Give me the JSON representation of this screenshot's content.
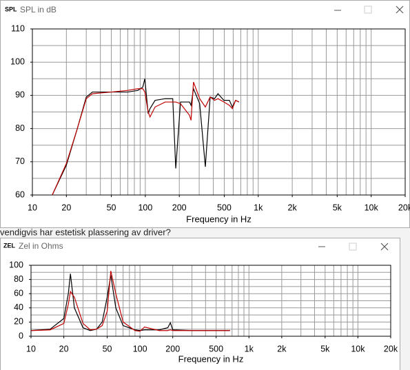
{
  "background_text": "vendigvis har estetisk plassering av driver?",
  "windows": [
    {
      "icon": "SPL",
      "title": "SPL in dB"
    },
    {
      "icon": "ZEL",
      "title": "Zel in Ohms"
    }
  ],
  "chart_data": [
    {
      "type": "line",
      "x_label": "Frequency in Hz",
      "xscale": "log",
      "x": [
        15,
        20,
        25,
        30,
        34,
        50,
        70,
        86,
        95,
        99,
        106,
        110,
        122,
        150,
        175,
        186,
        205,
        246,
        254,
        267,
        303,
        340,
        375,
        410,
        440,
        496,
        555,
        590,
        630,
        675
      ],
      "series": [
        {
          "color": "#000000",
          "values": [
            60,
            69,
            80,
            89.5,
            91,
            91,
            91,
            91.5,
            92.5,
            95,
            84.5,
            86,
            88.5,
            89,
            89,
            68,
            88,
            88,
            87,
            92,
            87.5,
            68.5,
            89.5,
            89,
            90.5,
            88.5,
            88.5,
            86.5,
            88.5,
            88
          ]
        },
        {
          "color": "#c00000",
          "values": [
            60,
            69.5,
            80,
            89,
            90.5,
            91,
            91.5,
            92,
            92,
            91,
            85,
            83.5,
            86.5,
            88,
            88,
            88,
            87.5,
            84,
            82.5,
            94,
            89,
            86.5,
            89.5,
            88.5,
            89,
            88,
            87,
            86,
            88.5,
            88
          ]
        }
      ],
      "xlim": [
        10,
        20000
      ],
      "ylim": [
        60,
        110
      ],
      "xticks": [
        10,
        20,
        50,
        100,
        200,
        500,
        {
          "value": 1000,
          "label": "1k"
        },
        {
          "value": 2000,
          "label": "2k"
        },
        {
          "value": 5000,
          "label": "5k"
        },
        {
          "value": 10000,
          "label": "10k"
        },
        {
          "value": 20000,
          "label": "20k"
        }
      ],
      "yticks": [
        60,
        70,
        80,
        90,
        100,
        110
      ],
      "xgrid": [
        10,
        20,
        30,
        40,
        50,
        60,
        70,
        80,
        90,
        100,
        200,
        300,
        400,
        500,
        600,
        700,
        800,
        900,
        1000,
        2000,
        3000,
        4000,
        5000,
        6000,
        7000,
        8000,
        9000,
        10000,
        20000
      ],
      "ygrid": [
        60,
        65,
        70,
        75,
        80,
        85,
        90,
        95,
        100,
        105,
        110
      ]
    },
    {
      "type": "line",
      "x_label": "Frequency in Hz",
      "xscale": "log",
      "x": [
        10,
        15,
        20,
        22,
        23,
        25,
        30,
        35,
        40,
        45,
        50,
        54,
        60,
        70,
        90,
        100,
        110,
        150,
        180,
        190,
        200,
        300,
        600,
        670
      ],
      "series": [
        {
          "color": "#000000",
          "values": [
            8,
            10,
            25,
            60,
            88,
            40,
            12,
            8,
            10,
            20,
            55,
            86,
            40,
            15,
            9,
            8,
            9,
            9,
            12,
            19,
            9,
            8,
            8,
            8
          ]
        },
        {
          "color": "#c00000",
          "values": [
            8,
            9,
            18,
            45,
            63,
            55,
            18,
            9,
            10,
            15,
            35,
            92,
            60,
            20,
            8,
            7,
            13,
            8,
            8,
            9,
            8,
            8,
            8,
            8
          ]
        }
      ],
      "xlim": [
        10,
        20000
      ],
      "ylim": [
        0,
        100
      ],
      "xticks": [
        10,
        20,
        50,
        100,
        200,
        500,
        {
          "value": 1000,
          "label": "1k"
        },
        {
          "value": 2000,
          "label": "2k"
        },
        {
          "value": 5000,
          "label": "5k"
        },
        {
          "value": 10000,
          "label": "10k"
        },
        {
          "value": 20000,
          "label": "20k"
        }
      ],
      "yticks": [
        0,
        20,
        40,
        60,
        80,
        100
      ],
      "xgrid": [
        10,
        20,
        30,
        40,
        50,
        60,
        70,
        80,
        90,
        100,
        200,
        300,
        400,
        500,
        600,
        700,
        800,
        900,
        1000,
        2000,
        3000,
        4000,
        5000,
        6000,
        7000,
        8000,
        9000,
        10000,
        20000
      ],
      "ygrid": [
        0,
        10,
        20,
        30,
        40,
        50,
        60,
        70,
        80,
        90,
        100
      ]
    }
  ]
}
